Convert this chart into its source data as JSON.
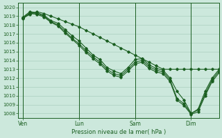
{
  "bg_color": "#cce8dc",
  "grid_color": "#aacfbf",
  "line_color": "#1a5e20",
  "xlabel": "Pression niveau de la mer( hPa )",
  "ylim": [
    1007.5,
    1020.5
  ],
  "yticks": [
    1008,
    1009,
    1010,
    1011,
    1012,
    1013,
    1014,
    1015,
    1016,
    1017,
    1018,
    1019,
    1020
  ],
  "xtick_labels": [
    "Ven",
    "Lun",
    "Sam",
    "Dim"
  ],
  "xtick_positions": [
    0,
    48,
    96,
    144
  ],
  "vline_positions": [
    0,
    48,
    96,
    144
  ],
  "xlim": [
    -4,
    168
  ],
  "series1_x": [
    0,
    6,
    12,
    18,
    24,
    30,
    36,
    42,
    48,
    54,
    60,
    66,
    72,
    78,
    84,
    90,
    96,
    102,
    108,
    114,
    120,
    126,
    132,
    138,
    144,
    150,
    156,
    162,
    168
  ],
  "series1_y": [
    1018.8,
    1019.2,
    1019.5,
    1019.3,
    1019.0,
    1018.7,
    1018.4,
    1018.1,
    1017.8,
    1017.4,
    1017.0,
    1016.6,
    1016.2,
    1015.8,
    1015.4,
    1015.0,
    1014.6,
    1014.2,
    1013.8,
    1013.4,
    1013.0,
    1013.0,
    1013.0,
    1013.0,
    1013.0,
    1013.0,
    1013.0,
    1013.0,
    1013.0
  ],
  "series2_x": [
    0,
    6,
    12,
    18,
    24,
    30,
    36,
    42,
    48,
    54,
    60,
    66,
    72,
    78,
    84,
    90,
    96,
    102,
    108,
    114,
    120,
    126,
    132,
    138,
    144,
    150,
    156,
    162,
    168
  ],
  "series2_y": [
    1018.9,
    1019.5,
    1019.4,
    1019.1,
    1018.5,
    1018.2,
    1017.5,
    1016.8,
    1016.2,
    1015.4,
    1014.6,
    1014.1,
    1013.2,
    1012.8,
    1012.5,
    1013.2,
    1014.1,
    1014.2,
    1013.5,
    1013.1,
    1012.9,
    1012.0,
    1010.5,
    1009.5,
    1008.0,
    1008.5,
    1010.5,
    1012.0,
    1013.0
  ],
  "series3_x": [
    0,
    6,
    12,
    18,
    24,
    30,
    36,
    42,
    48,
    54,
    60,
    66,
    72,
    78,
    84,
    90,
    96,
    102,
    108,
    114,
    120,
    126,
    132,
    138,
    144,
    150,
    156,
    162,
    168
  ],
  "series3_y": [
    1018.8,
    1019.4,
    1019.3,
    1019.0,
    1018.4,
    1018.0,
    1017.3,
    1016.5,
    1015.9,
    1015.1,
    1014.4,
    1013.8,
    1013.0,
    1012.5,
    1012.3,
    1013.0,
    1013.8,
    1014.0,
    1013.3,
    1012.9,
    1012.7,
    1011.8,
    1009.7,
    1009.1,
    1008.0,
    1008.4,
    1010.2,
    1011.8,
    1012.8
  ],
  "series4_x": [
    0,
    6,
    12,
    18,
    24,
    30,
    36,
    42,
    48,
    54,
    60,
    66,
    72,
    78,
    84,
    90,
    96,
    102,
    108,
    114,
    120,
    126,
    132,
    138,
    144,
    150,
    156,
    162,
    168
  ],
  "series4_y": [
    1018.7,
    1019.3,
    1019.2,
    1018.9,
    1018.3,
    1017.9,
    1017.1,
    1016.4,
    1015.7,
    1014.9,
    1014.2,
    1013.6,
    1012.8,
    1012.3,
    1012.1,
    1012.8,
    1013.6,
    1013.8,
    1013.1,
    1012.7,
    1012.5,
    1011.6,
    1009.5,
    1008.9,
    1007.9,
    1008.2,
    1010.0,
    1011.6,
    1012.6
  ]
}
